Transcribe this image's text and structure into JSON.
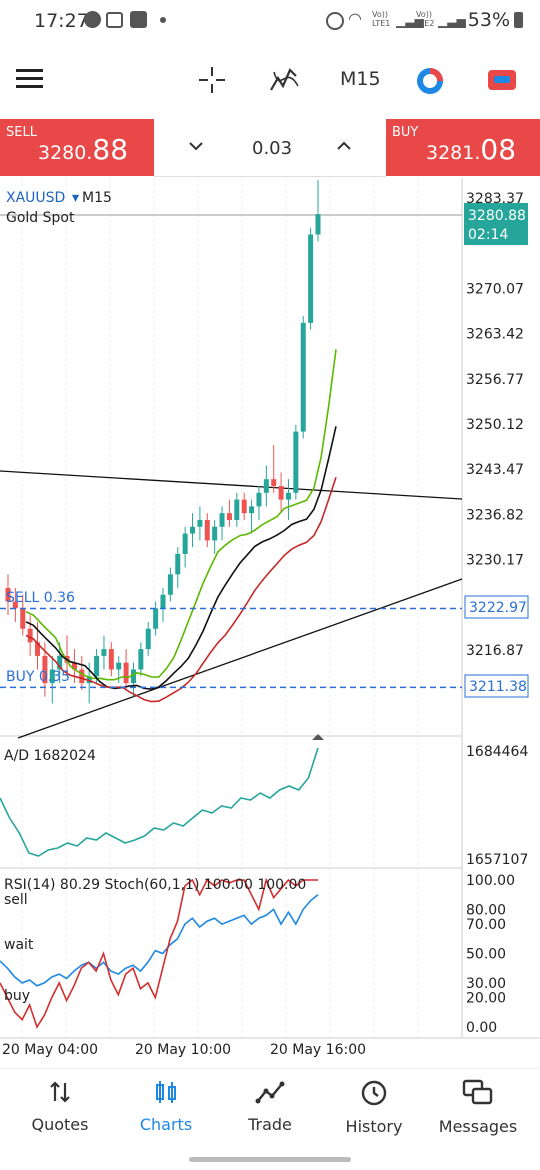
{
  "status_bar": {
    "time": "17:27",
    "battery": "53%",
    "network_1": "Vo))\nLTE1",
    "network_2": "Vo))\nLTE2",
    "icons": [
      "dollar-circle-icon",
      "gmail-icon",
      "gallery-icon",
      "dot-icon",
      "alarm-icon",
      "wifi-icon",
      "signal-icon",
      "battery-icon"
    ]
  },
  "toolbar": {
    "timeframe": "M15",
    "icons": [
      "menu-icon",
      "crosshair-icon",
      "indicator-icon",
      "timeframe-label",
      "clock-icon",
      "trade-icon"
    ]
  },
  "trade_panel": {
    "sell": {
      "label": "SELL",
      "price_small": "3280.",
      "price_big": "88"
    },
    "buy": {
      "label": "BUY",
      "price_small": "3281.",
      "price_big": "08"
    },
    "lot": "0.03"
  },
  "chart": {
    "symbol": "XAUUSD",
    "symbol_tf": "M15",
    "description": "Gold Spot",
    "current_price": "3280.88",
    "countdown": "02:14",
    "y_ticks": [
      "3283.37",
      "3270.07",
      "3263.42",
      "3256.77",
      "3250.12",
      "3243.47",
      "3236.82",
      "3230.17",
      "3216.87"
    ],
    "sell_order": {
      "label": "SELL 0.36",
      "price": "3222.97"
    },
    "buy_order": {
      "label": "BUY 0.35",
      "price": "3211.38"
    },
    "ad": {
      "label": "A/D 1682024",
      "max": "1684464",
      "min": "1657107"
    },
    "osc": {
      "label": "RSI(14) 80.29 Stoch(60,1,1) 100.00 100.00",
      "sell": "sell",
      "wait": "wait",
      "buy": "buy",
      "levels": [
        "100.00",
        "80.00",
        "70.00",
        "50.00",
        "30.00",
        "20.00",
        "0.00"
      ]
    },
    "x_labels": [
      "20 May 04:00",
      "20 May 10:00",
      "20 May 16:00"
    ],
    "colors": {
      "bull": "#26a69a",
      "bear": "#ef5350",
      "ma_green": "#5cb800",
      "ma_black": "#111111",
      "ma_red": "#c62828",
      "rsi": "#1e88e5",
      "stoch": "#d32f2f",
      "ad": "#26a69a",
      "order_line": "#2a6fd6"
    }
  },
  "chart_data": {
    "type": "candlestick",
    "symbol": "XAUUSD",
    "timeframe": "M15",
    "ylim": [
      3208,
      3285
    ],
    "candles_ohlc_approx": [
      [
        3226,
        3228,
        3222,
        3224
      ],
      [
        3224,
        3226,
        3221,
        3223
      ],
      [
        3223,
        3225,
        3219,
        3220
      ],
      [
        3220,
        3222,
        3216,
        3218
      ],
      [
        3218,
        3221,
        3214,
        3216
      ],
      [
        3216,
        3218,
        3210,
        3212
      ],
      [
        3212,
        3216,
        3209,
        3214
      ],
      [
        3214,
        3218,
        3212,
        3216
      ],
      [
        3216,
        3219,
        3213,
        3215
      ],
      [
        3215,
        3217,
        3212,
        3214
      ],
      [
        3214,
        3216,
        3211,
        3212
      ],
      [
        3212,
        3215,
        3209,
        3213
      ],
      [
        3213,
        3217,
        3212,
        3216
      ],
      [
        3216,
        3219,
        3214,
        3217
      ],
      [
        3217,
        3218,
        3213,
        3214
      ],
      [
        3214,
        3216,
        3212,
        3215
      ],
      [
        3215,
        3217,
        3211,
        3212
      ],
      [
        3212,
        3215,
        3210,
        3214
      ],
      [
        3214,
        3218,
        3213,
        3217
      ],
      [
        3217,
        3221,
        3216,
        3220
      ],
      [
        3220,
        3224,
        3219,
        3223
      ],
      [
        3223,
        3226,
        3221,
        3225
      ],
      [
        3225,
        3229,
        3224,
        3228
      ],
      [
        3228,
        3232,
        3226,
        3231
      ],
      [
        3231,
        3235,
        3229,
        3234
      ],
      [
        3234,
        3237,
        3232,
        3235
      ],
      [
        3235,
        3238,
        3233,
        3236
      ],
      [
        3236,
        3237,
        3232,
        3233
      ],
      [
        3233,
        3236,
        3231,
        3235
      ],
      [
        3235,
        3238,
        3233,
        3237
      ],
      [
        3237,
        3239,
        3235,
        3236
      ],
      [
        3236,
        3240,
        3235,
        3239
      ],
      [
        3239,
        3240,
        3236,
        3237
      ],
      [
        3237,
        3239,
        3234,
        3238
      ],
      [
        3238,
        3241,
        3236,
        3240
      ],
      [
        3240,
        3244,
        3238,
        3242
      ],
      [
        3242,
        3247,
        3240,
        3241
      ],
      [
        3241,
        3243,
        3237,
        3239
      ],
      [
        3239,
        3242,
        3236,
        3240
      ],
      [
        3240,
        3250,
        3239,
        3249
      ],
      [
        3249,
        3266,
        3248,
        3265
      ],
      [
        3265,
        3279,
        3264,
        3278
      ],
      [
        3278,
        3286,
        3277,
        3281
      ]
    ],
    "sell_position_price": 3222.97,
    "buy_position_price": 3211.38
  },
  "nav": [
    {
      "label": "Quotes",
      "icon": "quotes-icon"
    },
    {
      "label": "Charts",
      "icon": "charts-icon",
      "active": true
    },
    {
      "label": "Trade",
      "icon": "trade-nav-icon"
    },
    {
      "label": "History",
      "icon": "history-icon"
    },
    {
      "label": "Messages",
      "icon": "messages-icon"
    }
  ]
}
